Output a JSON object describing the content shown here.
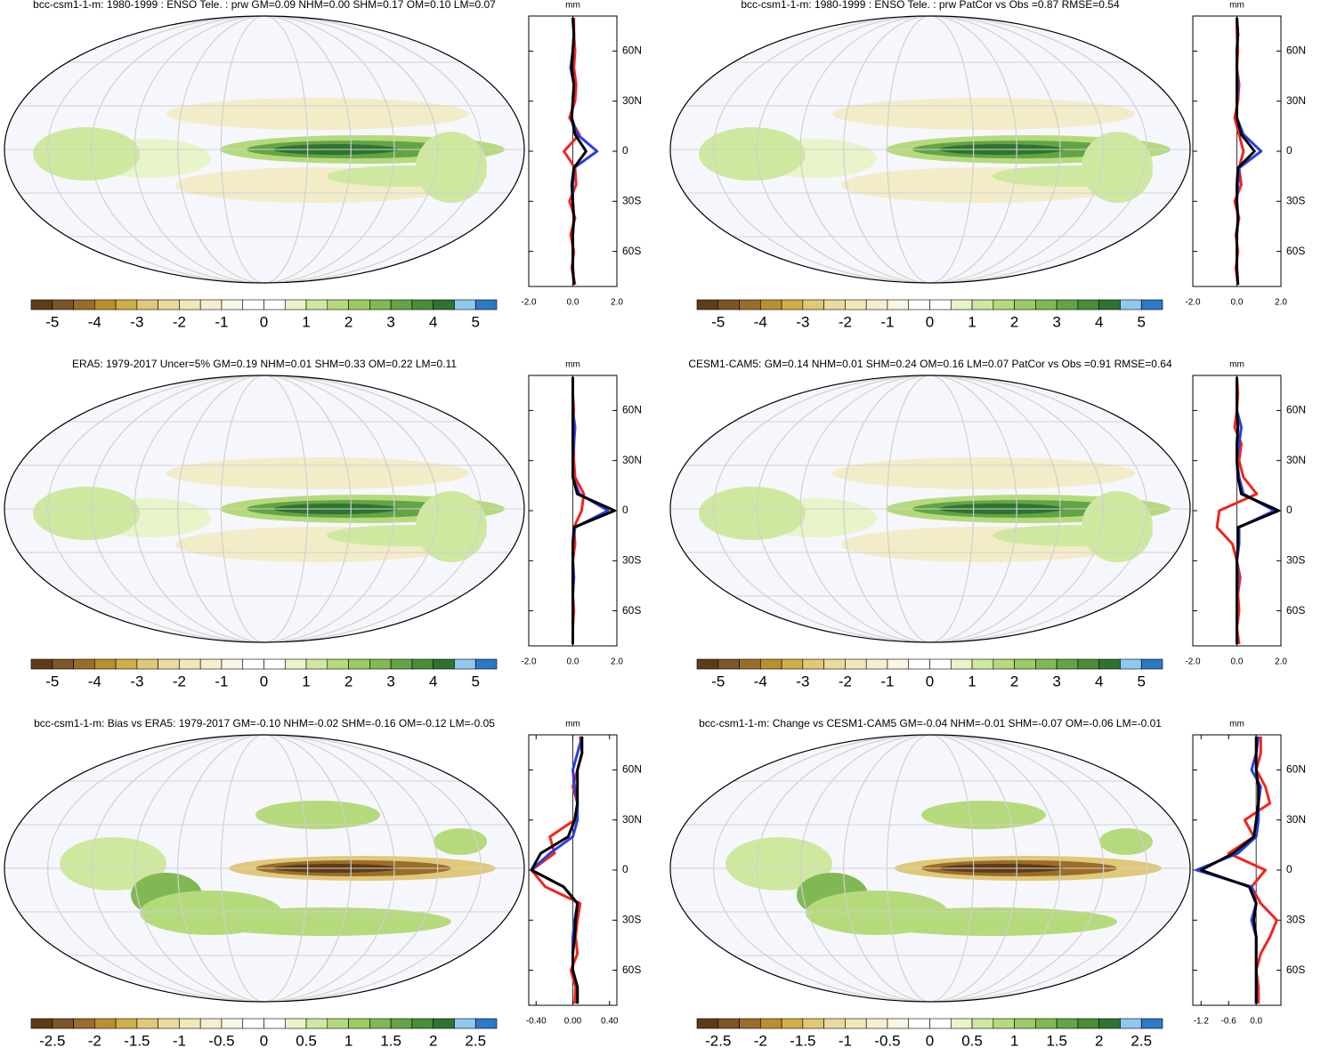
{
  "chart_data": [
    {
      "type": "line",
      "title": "bcc-csm1-1-m: 1980-1999 : ENSO Tele. : prw GM=0.09 NHM=0.00 SHM=0.17 OM=0.10 LM=0.07",
      "xlabel": "mm",
      "xlim": [
        -2,
        2
      ],
      "xticks": [
        {
          "value": -2,
          "label": "-2.0"
        },
        {
          "value": 0,
          "label": "0.0"
        },
        {
          "value": 2,
          "label": "2.0"
        }
      ],
      "ylim": [
        -81,
        81
      ],
      "yticks": [
        {
          "value": 60,
          "label": "60N"
        },
        {
          "value": 30,
          "label": "30N"
        },
        0,
        {
          "value": -30,
          "label": "30S"
        },
        {
          "value": -60,
          "label": "60S"
        }
      ],
      "y": [
        -80,
        -70,
        -60,
        -50,
        -40,
        -30,
        -20,
        -10,
        0,
        10,
        20,
        30,
        40,
        50,
        60,
        70,
        80
      ],
      "series": [
        {
          "color": "#f0261e",
          "values": [
            0.1,
            -0.05,
            0.05,
            -0.1,
            0.1,
            -0.15,
            0.15,
            0.1,
            -0.4,
            0.3,
            -0.15,
            0.1,
            0.15,
            0.05,
            0.1,
            0.05,
            0.05
          ]
        },
        {
          "color": "#2a3fdc",
          "values": [
            0.05,
            0,
            0,
            0,
            0.05,
            0,
            0,
            0.05,
            1.1,
            0.2,
            -0.05,
            0,
            0.05,
            -0.1,
            0,
            0.05,
            0
          ]
        },
        {
          "color": "#000000",
          "values": [
            0.05,
            0,
            0,
            0,
            0.05,
            0,
            -0.05,
            0.05,
            0.6,
            0.1,
            -0.05,
            0,
            0.05,
            -0.05,
            0,
            0.05,
            0
          ]
        }
      ],
      "colorbar": {
        "lim": [
          -5.5,
          5.5
        ],
        "ticks": [
          -5,
          -4,
          -3,
          -2,
          -1,
          0,
          1,
          2,
          3,
          4,
          5
        ],
        "colors": [
          "#5e3c17",
          "#7d5526",
          "#9a6d2a",
          "#b9902f",
          "#d1ae48",
          "#e0c877",
          "#eadb9c",
          "#f1e8b8",
          "#f5efcf",
          "#f9f6e6",
          "#ffffff",
          "#ffffff",
          "#e8f4c9",
          "#cfe8a0",
          "#b5da7c",
          "#9bcb63",
          "#80b953",
          "#63a444",
          "#4a8d39",
          "#2f7330",
          "#8fc8ee",
          "#2c79c6"
        ]
      }
    },
    {
      "type": "line",
      "title": "bcc-csm1-1-m: 1980-1999 : ENSO Tele. : prw PatCor vs Obs =0.87 RMSE=0.54",
      "xlabel": "mm",
      "xlim": [
        -2,
        2
      ],
      "xticks": [
        {
          "value": -2,
          "label": "-2.0"
        },
        {
          "value": 0,
          "label": "0.0"
        },
        {
          "value": 2,
          "label": "2.0"
        }
      ],
      "ylim": [
        -81,
        81
      ],
      "yticks": [
        {
          "value": 60,
          "label": "60N"
        },
        {
          "value": 30,
          "label": "30N"
        },
        0,
        {
          "value": -30,
          "label": "30S"
        },
        {
          "value": -60,
          "label": "60S"
        }
      ],
      "y": [
        -80,
        -70,
        -60,
        -50,
        -40,
        -30,
        -20,
        -10,
        0,
        10,
        20,
        30,
        40,
        50,
        60,
        70,
        80
      ],
      "series": [
        {
          "color": "#f0261e",
          "values": [
            0.05,
            -0.05,
            0.05,
            -0.05,
            0.1,
            -0.1,
            0.2,
            0.1,
            0.3,
            0.1,
            -0.1,
            0.05,
            0.1,
            0,
            0.05,
            0,
            0
          ]
        },
        {
          "color": "#2a3fdc",
          "values": [
            0.05,
            0,
            0,
            0,
            0.05,
            0,
            0.05,
            0.1,
            1.1,
            0.3,
            0,
            0,
            0.05,
            0,
            0,
            0.05,
            0
          ]
        },
        {
          "color": "#000000",
          "values": [
            0.05,
            0,
            0,
            0,
            0.05,
            0,
            0,
            0.05,
            0.8,
            0.2,
            0,
            0,
            0,
            0,
            0,
            0.05,
            0
          ]
        }
      ],
      "colorbar": {
        "lim": [
          -5.5,
          5.5
        ],
        "ticks": [
          -5,
          -4,
          -3,
          -2,
          -1,
          0,
          1,
          2,
          3,
          4,
          5
        ],
        "colors": [
          "#5e3c17",
          "#7d5526",
          "#9a6d2a",
          "#b9902f",
          "#d1ae48",
          "#e0c877",
          "#eadb9c",
          "#f1e8b8",
          "#f5efcf",
          "#f9f6e6",
          "#ffffff",
          "#ffffff",
          "#e8f4c9",
          "#cfe8a0",
          "#b5da7c",
          "#9bcb63",
          "#80b953",
          "#63a444",
          "#4a8d39",
          "#2f7330",
          "#8fc8ee",
          "#2c79c6"
        ]
      }
    },
    {
      "type": "line",
      "title": "ERA5: 1979-2017 Uncer=5% GM=0.19 NHM=0.01 SHM=0.33 OM=0.22 LM=0.11",
      "xlabel": "mm",
      "xlim": [
        -2,
        2
      ],
      "xticks": [
        {
          "value": -2,
          "label": "-2.0"
        },
        {
          "value": 0,
          "label": "0.0"
        },
        {
          "value": 2,
          "label": "2.0"
        }
      ],
      "ylim": [
        -81,
        81
      ],
      "yticks": [
        {
          "value": 60,
          "label": "60N"
        },
        {
          "value": 30,
          "label": "30N"
        },
        0,
        {
          "value": -30,
          "label": "30S"
        },
        {
          "value": -60,
          "label": "60S"
        }
      ],
      "y": [
        -80,
        -70,
        -60,
        -50,
        -40,
        -30,
        -20,
        -10,
        0,
        10,
        20,
        30,
        40,
        50,
        60,
        70,
        80
      ],
      "series": [
        {
          "color": "#f0261e",
          "values": [
            0,
            0,
            0.05,
            0,
            0.05,
            0,
            0.1,
            0.05,
            0.4,
            0.5,
            0.1,
            0.05,
            0.05,
            0,
            0.05,
            0,
            0
          ]
        },
        {
          "color": "#2a3fdc",
          "values": [
            0,
            0,
            0,
            0,
            0.05,
            0,
            0,
            0.1,
            1.6,
            0.3,
            0,
            0,
            0.05,
            0.1,
            0,
            0,
            0
          ]
        },
        {
          "color": "#000000",
          "values": [
            0,
            0,
            0,
            0,
            0,
            0,
            0,
            0.05,
            1.9,
            0.2,
            0,
            0,
            0,
            0,
            0,
            0,
            0
          ]
        }
      ],
      "colorbar": {
        "lim": [
          -5.5,
          5.5
        ],
        "ticks": [
          -5,
          -4,
          -3,
          -2,
          -1,
          0,
          1,
          2,
          3,
          4,
          5
        ],
        "colors": [
          "#5e3c17",
          "#7d5526",
          "#9a6d2a",
          "#b9902f",
          "#d1ae48",
          "#e0c877",
          "#eadb9c",
          "#f1e8b8",
          "#f5efcf",
          "#f9f6e6",
          "#ffffff",
          "#ffffff",
          "#e8f4c9",
          "#cfe8a0",
          "#b5da7c",
          "#9bcb63",
          "#80b953",
          "#63a444",
          "#4a8d39",
          "#2f7330",
          "#8fc8ee",
          "#2c79c6"
        ]
      }
    },
    {
      "type": "line",
      "title": "CESM1-CAM5: GM=0.14 NHM=0.01 SHM=0.24 OM=0.16 LM=0.07 PatCor vs Obs =0.91 RMSE=0.64",
      "xlabel": "mm",
      "xlim": [
        -2,
        2
      ],
      "xticks": [
        {
          "value": -2,
          "label": "-2.0"
        },
        {
          "value": 0,
          "label": "0.0"
        },
        {
          "value": 2,
          "label": "2.0"
        }
      ],
      "ylim": [
        -81,
        81
      ],
      "yticks": [
        {
          "value": 60,
          "label": "60N"
        },
        {
          "value": 30,
          "label": "30N"
        },
        0,
        {
          "value": -30,
          "label": "30S"
        },
        {
          "value": -60,
          "label": "60S"
        }
      ],
      "y": [
        -80,
        -70,
        -60,
        -50,
        -40,
        -30,
        -20,
        -10,
        0,
        10,
        20,
        30,
        40,
        50,
        60,
        70,
        80
      ],
      "series": [
        {
          "color": "#f0261e",
          "values": [
            0.1,
            0,
            0.1,
            0.05,
            0.15,
            0,
            -0.2,
            -0.9,
            -0.8,
            0.9,
            0.3,
            0.1,
            0.2,
            -0.1,
            0,
            0.05,
            0
          ]
        },
        {
          "color": "#2a3fdc",
          "values": [
            0,
            0,
            0,
            0,
            0.05,
            0,
            0.1,
            0.1,
            1.7,
            0.3,
            0.1,
            0,
            0.1,
            0.2,
            0,
            0,
            0
          ]
        },
        {
          "color": "#000000",
          "values": [
            0,
            0,
            0,
            0,
            0,
            0,
            0.05,
            0.05,
            1.9,
            0.2,
            0.05,
            0,
            0,
            0.05,
            0,
            0,
            0
          ]
        }
      ],
      "colorbar": {
        "lim": [
          -5.5,
          5.5
        ],
        "ticks": [
          -5,
          -4,
          -3,
          -2,
          -1,
          0,
          1,
          2,
          3,
          4,
          5
        ],
        "colors": [
          "#5e3c17",
          "#7d5526",
          "#9a6d2a",
          "#b9902f",
          "#d1ae48",
          "#e0c877",
          "#eadb9c",
          "#f1e8b8",
          "#f5efcf",
          "#f9f6e6",
          "#ffffff",
          "#ffffff",
          "#e8f4c9",
          "#cfe8a0",
          "#b5da7c",
          "#9bcb63",
          "#80b953",
          "#63a444",
          "#4a8d39",
          "#2f7330",
          "#8fc8ee",
          "#2c79c6"
        ]
      }
    },
    {
      "type": "line",
      "title": "bcc-csm1-1-m: Bias vs ERA5: 1979-2017 GM=-0.10 NHM=-0.02 SHM=-0.16 OM=-0.12 LM=-0.05",
      "xlabel": "mm",
      "xlim": [
        -0.48,
        0.48
      ],
      "xticks": [
        {
          "value": -0.4,
          "label": "-0.40"
        },
        {
          "value": 0,
          "label": "0.00"
        },
        {
          "value": 0.4,
          "label": "0.40"
        }
      ],
      "ylim": [
        -81,
        81
      ],
      "yticks": [
        {
          "value": 60,
          "label": "60N"
        },
        {
          "value": 30,
          "label": "30N"
        },
        0,
        {
          "value": -30,
          "label": "30S"
        },
        {
          "value": -60,
          "label": "60S"
        }
      ],
      "y": [
        -80,
        -70,
        -60,
        -50,
        -40,
        -30,
        -20,
        -10,
        0,
        10,
        20,
        30,
        40,
        50,
        60,
        70,
        80
      ],
      "series": [
        {
          "color": "#f0261e",
          "values": [
            0.02,
            0.03,
            -0.02,
            0.05,
            0.03,
            0.05,
            0.08,
            -0.3,
            -0.45,
            -0.2,
            -0.25,
            0.02,
            0.05,
            0,
            0.05,
            0.1,
            0.08
          ]
        },
        {
          "color": "#2a3fdc",
          "values": [
            0.05,
            0.05,
            0,
            0,
            0,
            0.02,
            0.05,
            -0.1,
            -0.45,
            -0.25,
            0,
            0.05,
            0.05,
            0.02,
            0,
            0.05,
            0.1
          ]
        },
        {
          "color": "#000000",
          "values": [
            0.05,
            0.05,
            0,
            0,
            0.02,
            0.03,
            0.05,
            -0.1,
            -0.45,
            -0.35,
            -0.05,
            0.02,
            0.05,
            0.05,
            0.05,
            0.1,
            0.1
          ]
        }
      ],
      "colorbar": {
        "lim": [
          -2.75,
          2.75
        ],
        "ticks": [
          -2.5,
          -2,
          -1.5,
          -1,
          -0.5,
          0,
          0.5,
          1,
          1.5,
          2,
          2.5
        ],
        "colors": [
          "#5e3c17",
          "#7d5526",
          "#9a6d2a",
          "#b9902f",
          "#d1ae48",
          "#e0c877",
          "#eadb9c",
          "#f1e8b8",
          "#f5efcf",
          "#f9f6e6",
          "#ffffff",
          "#ffffff",
          "#e8f4c9",
          "#cfe8a0",
          "#b5da7c",
          "#9bcb63",
          "#80b953",
          "#63a444",
          "#4a8d39",
          "#2f7330",
          "#8fc8ee",
          "#2c79c6"
        ]
      }
    },
    {
      "type": "line",
      "title": "bcc-csm1-1-m: Change vs CESM1-CAM5 GM=-0.04 NHM=-0.01 SHM=-0.07 OM=-0.06 LM=-0.01",
      "xlabel": "mm",
      "xlim": [
        -1.38,
        0.54
      ],
      "xticks": [
        {
          "value": -1.2,
          "label": "-1.2"
        },
        {
          "value": -0.6,
          "label": "-0.6"
        },
        {
          "value": 0,
          "label": "0.0"
        }
      ],
      "ylim": [
        -81,
        81
      ],
      "yticks": [
        {
          "value": 60,
          "label": "60N"
        },
        {
          "value": 30,
          "label": "30N"
        },
        0,
        {
          "value": -30,
          "label": "30S"
        },
        {
          "value": -60,
          "label": "60S"
        }
      ],
      "y": [
        -80,
        -70,
        -60,
        -50,
        -40,
        -30,
        -20,
        -10,
        0,
        10,
        20,
        30,
        40,
        50,
        60,
        70,
        80
      ],
      "series": [
        {
          "color": "#f0261e",
          "values": [
            0.05,
            0.05,
            0,
            0.1,
            0.3,
            0.45,
            0.1,
            -0.1,
            0.2,
            -0.6,
            -0.05,
            -0.25,
            0.3,
            0.2,
            0,
            0.1,
            0.1
          ]
        },
        {
          "color": "#2a3fdc",
          "values": [
            0,
            0,
            0,
            0,
            0,
            -0.1,
            0,
            -0.1,
            -1.3,
            -0.4,
            0,
            0.05,
            0.05,
            0.1,
            -0.1,
            0,
            0.05
          ]
        },
        {
          "color": "#000000",
          "values": [
            0,
            0,
            0,
            0,
            0,
            -0.05,
            0,
            -0.15,
            -1.2,
            -0.5,
            -0.05,
            0,
            0.05,
            0.05,
            0,
            0,
            0
          ]
        }
      ],
      "colorbar": {
        "lim": [
          -2.75,
          2.75
        ],
        "ticks": [
          -2.5,
          -2,
          -1.5,
          -1,
          -0.5,
          0,
          0.5,
          1,
          1.5,
          2,
          2.5
        ],
        "colors": [
          "#5e3c17",
          "#7d5526",
          "#9a6d2a",
          "#b9902f",
          "#d1ae48",
          "#e0c877",
          "#eadb9c",
          "#f1e8b8",
          "#f5efcf",
          "#f9f6e6",
          "#ffffff",
          "#ffffff",
          "#e8f4c9",
          "#cfe8a0",
          "#b5da7c",
          "#9bcb63",
          "#80b953",
          "#63a444",
          "#4a8d39",
          "#2f7330",
          "#8fc8ee",
          "#2c79c6"
        ]
      }
    }
  ]
}
